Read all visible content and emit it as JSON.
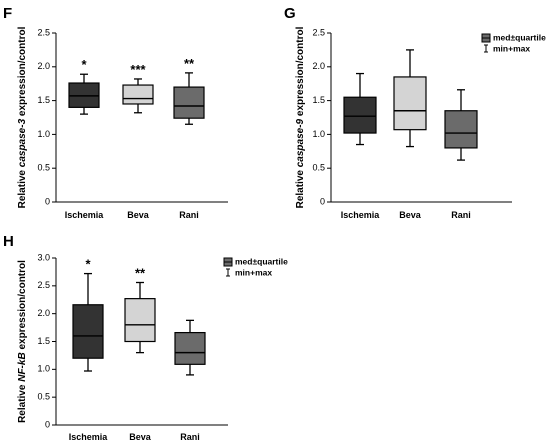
{
  "chart_data": [
    {
      "panel": "F",
      "type": "boxplot",
      "ylabel": {
        "pre": "Relative ",
        "gene": "caspase-3",
        "post": " expression/control"
      },
      "ylim": [
        0,
        2.5
      ],
      "yticks": [
        "0",
        "0.5",
        "1.0",
        "1.5",
        "2.0",
        "2.5"
      ],
      "categories": [
        "Ischemia",
        "Beva",
        "Rani"
      ],
      "boxes": [
        {
          "name": "Ischemia",
          "min": 1.3,
          "q1": 1.4,
          "median": 1.57,
          "q3": 1.76,
          "max": 1.89,
          "color": "#333333",
          "sig": "*"
        },
        {
          "name": "Beva",
          "min": 1.32,
          "q1": 1.45,
          "median": 1.53,
          "q3": 1.73,
          "max": 1.82,
          "color": "#d4d4d4",
          "sig": "***"
        },
        {
          "name": "Rani",
          "min": 1.15,
          "q1": 1.24,
          "median": 1.42,
          "q3": 1.7,
          "max": 1.91,
          "color": "#6b6b6b",
          "sig": "**"
        }
      ],
      "legend": null
    },
    {
      "panel": "G",
      "type": "boxplot",
      "ylabel": {
        "pre": "Relative ",
        "gene": "caspase-9",
        "post": " expression/control"
      },
      "ylim": [
        0,
        2.5
      ],
      "yticks": [
        "0",
        "0.5",
        "1.0",
        "1.5",
        "2.0",
        "2.5"
      ],
      "categories": [
        "Ischemia",
        "Beva",
        "Rani"
      ],
      "boxes": [
        {
          "name": "Ischemia",
          "min": 0.85,
          "q1": 1.02,
          "median": 1.27,
          "q3": 1.55,
          "max": 1.9,
          "color": "#333333",
          "sig": ""
        },
        {
          "name": "Beva",
          "min": 0.82,
          "q1": 1.07,
          "median": 1.35,
          "q3": 1.85,
          "max": 2.25,
          "color": "#d4d4d4",
          "sig": ""
        },
        {
          "name": "Rani",
          "min": 0.62,
          "q1": 0.8,
          "median": 1.02,
          "q3": 1.35,
          "max": 1.66,
          "color": "#6b6b6b",
          "sig": ""
        }
      ],
      "legend": {
        "box_label": "med±quartile",
        "whisker_label": "min+max",
        "box_color": "#6b6b6b"
      }
    },
    {
      "panel": "H",
      "type": "boxplot",
      "ylabel": {
        "pre": "Relative ",
        "gene": "NF-kB",
        "post": " expression/control"
      },
      "ylim": [
        0,
        3.0
      ],
      "yticks": [
        "0",
        "0.5",
        "1.0",
        "1.5",
        "2.0",
        "2.5",
        "3.0"
      ],
      "categories": [
        "Ischemia",
        "Beva",
        "Rani"
      ],
      "boxes": [
        {
          "name": "Ischemia",
          "min": 0.97,
          "q1": 1.2,
          "median": 1.6,
          "q3": 2.16,
          "max": 2.72,
          "color": "#333333",
          "sig": "*"
        },
        {
          "name": "Beva",
          "min": 1.3,
          "q1": 1.5,
          "median": 1.8,
          "q3": 2.27,
          "max": 2.56,
          "color": "#d4d4d4",
          "sig": "**"
        },
        {
          "name": "Rani",
          "min": 0.9,
          "q1": 1.09,
          "median": 1.3,
          "q3": 1.66,
          "max": 1.88,
          "color": "#6b6b6b",
          "sig": ""
        }
      ],
      "legend": {
        "box_label": "med±quartile",
        "whisker_label": "min+max",
        "box_color": "#6b6b6b"
      }
    }
  ]
}
